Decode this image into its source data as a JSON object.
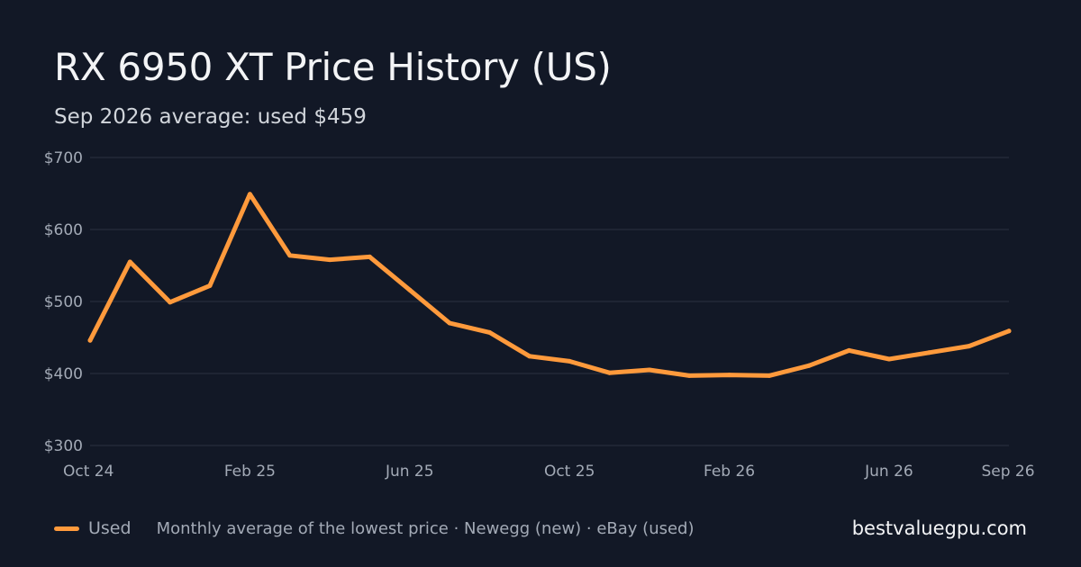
{
  "header": {
    "title": "RX 6950 XT Price History (US)",
    "subtitle": "Sep 2026 average: used $459"
  },
  "footer": {
    "legend_label": "Used",
    "note": "Monthly average of the lowest price · Newegg (new) · eBay (used)",
    "site": "bestvaluegpu.com"
  },
  "colors": {
    "background": "#121826",
    "used_line": "#ff9a3c",
    "grid": "#2a3140",
    "axis_text": "#a3aab6"
  },
  "chart_data": {
    "type": "line",
    "title": "RX 6950 XT Price History (US)",
    "subtitle": "Sep 2026 average: used $459",
    "xlabel": "",
    "ylabel": "",
    "x": [
      "2024-10",
      "2024-11",
      "2024-12",
      "2025-01",
      "2025-02",
      "2025-03",
      "2025-04",
      "2025-05",
      "2025-06",
      "2025-07",
      "2025-08",
      "2025-09",
      "2025-10",
      "2025-11",
      "2025-12",
      "2026-01",
      "2026-02",
      "2026-03",
      "2026-04",
      "2026-05",
      "2026-06",
      "2026-07",
      "2026-08",
      "2026-09"
    ],
    "x_tick_labels": [
      "Oct 24",
      "Feb 25",
      "Jun 25",
      "Oct 25",
      "Feb 26",
      "Jun 26",
      "Sep 26"
    ],
    "x_tick_positions": [
      "2024-10",
      "2025-02",
      "2025-06",
      "2025-10",
      "2026-02",
      "2026-06",
      "2026-09"
    ],
    "y_ticks": [
      300,
      400,
      500,
      600,
      700
    ],
    "y_tick_labels": [
      "$300",
      "$400",
      "$500",
      "$600",
      "$700"
    ],
    "ylim": [
      300,
      700
    ],
    "grid": "horizontal",
    "legend": "bottom-left",
    "series": [
      {
        "name": "Used",
        "color": "#ff9a3c",
        "values": [
          446,
          555,
          499,
          522,
          649,
          564,
          558,
          562,
          516,
          470,
          457,
          424,
          417,
          401,
          405,
          397,
          398,
          397,
          411,
          432,
          420,
          429,
          438,
          459
        ]
      }
    ]
  }
}
